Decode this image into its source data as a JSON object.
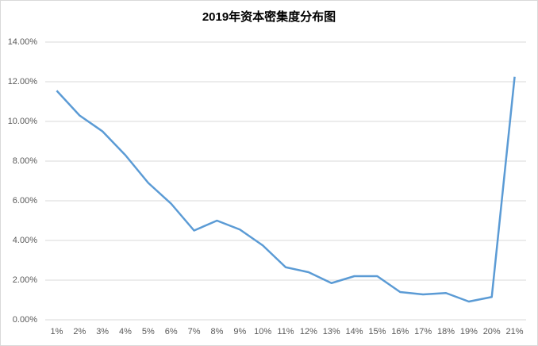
{
  "chart_data": {
    "type": "line",
    "title": "2019年资本密集度分布图",
    "categories": [
      "1%",
      "2%",
      "3%",
      "4%",
      "5%",
      "6%",
      "7%",
      "8%",
      "9%",
      "10%",
      "11%",
      "12%",
      "13%",
      "14%",
      "15%",
      "16%",
      "17%",
      "18%",
      "19%",
      "20%",
      "21%"
    ],
    "series": [
      {
        "name": "资本密集度",
        "color": "#5b9bd5",
        "values": [
          11.55,
          10.3,
          9.5,
          8.3,
          6.9,
          5.85,
          4.5,
          5.0,
          4.55,
          3.75,
          2.65,
          2.4,
          1.85,
          2.2,
          2.2,
          1.4,
          1.28,
          1.35,
          0.92,
          1.15,
          12.25
        ]
      }
    ],
    "ylim": [
      0,
      14
    ],
    "yticks": [
      {
        "value": 0,
        "label": "0.00%"
      },
      {
        "value": 2,
        "label": "2.00%"
      },
      {
        "value": 4,
        "label": "4.00%"
      },
      {
        "value": 6,
        "label": "6.00%"
      },
      {
        "value": 8,
        "label": "8.00%"
      },
      {
        "value": 10,
        "label": "10.00%"
      },
      {
        "value": 12,
        "label": "12.00%"
      },
      {
        "value": 14,
        "label": "14.00%"
      }
    ],
    "grid": true
  }
}
